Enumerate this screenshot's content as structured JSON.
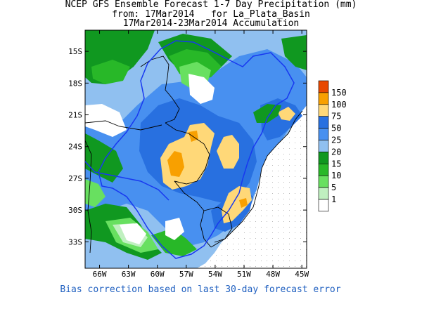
{
  "title": {
    "line1": "NCEP GFS Ensemble Forecast 1-7 Day Precipitation (mm)",
    "line2": "from: 17Mar2014   for La_Plata_Basin",
    "line3": "17Mar2014-23Mar2014 Accumulation"
  },
  "axes": {
    "lat_labels": [
      "15S",
      "18S",
      "21S",
      "24S",
      "27S",
      "30S",
      "33S"
    ],
    "lon_labels": [
      "66W",
      "63W",
      "60W",
      "57W",
      "54W",
      "51W",
      "48W",
      "45W"
    ],
    "lat_range_deg": [
      -35.5,
      -13.0
    ],
    "lon_range_deg": [
      -67.5,
      -44.5
    ]
  },
  "legend": [
    {
      "label": "150",
      "color": "#e84800"
    },
    {
      "label": "100",
      "color": "#f8a000"
    },
    {
      "label": "75",
      "color": "#ffd878"
    },
    {
      "label": "50",
      "color": "#2870e0"
    },
    {
      "label": "25",
      "color": "#4890f0"
    },
    {
      "label": "20",
      "color": "#90c0f0"
    },
    {
      "label": "15",
      "color": "#109820"
    },
    {
      "label": "10",
      "color": "#28b828"
    },
    {
      "label": "5",
      "color": "#68e060"
    },
    {
      "label": "1",
      "color": "#c0f0c0"
    },
    {
      "label": "",
      "color": "#ffffff"
    }
  ],
  "footnote": "Bias correction based on last 30-day forecast error"
}
